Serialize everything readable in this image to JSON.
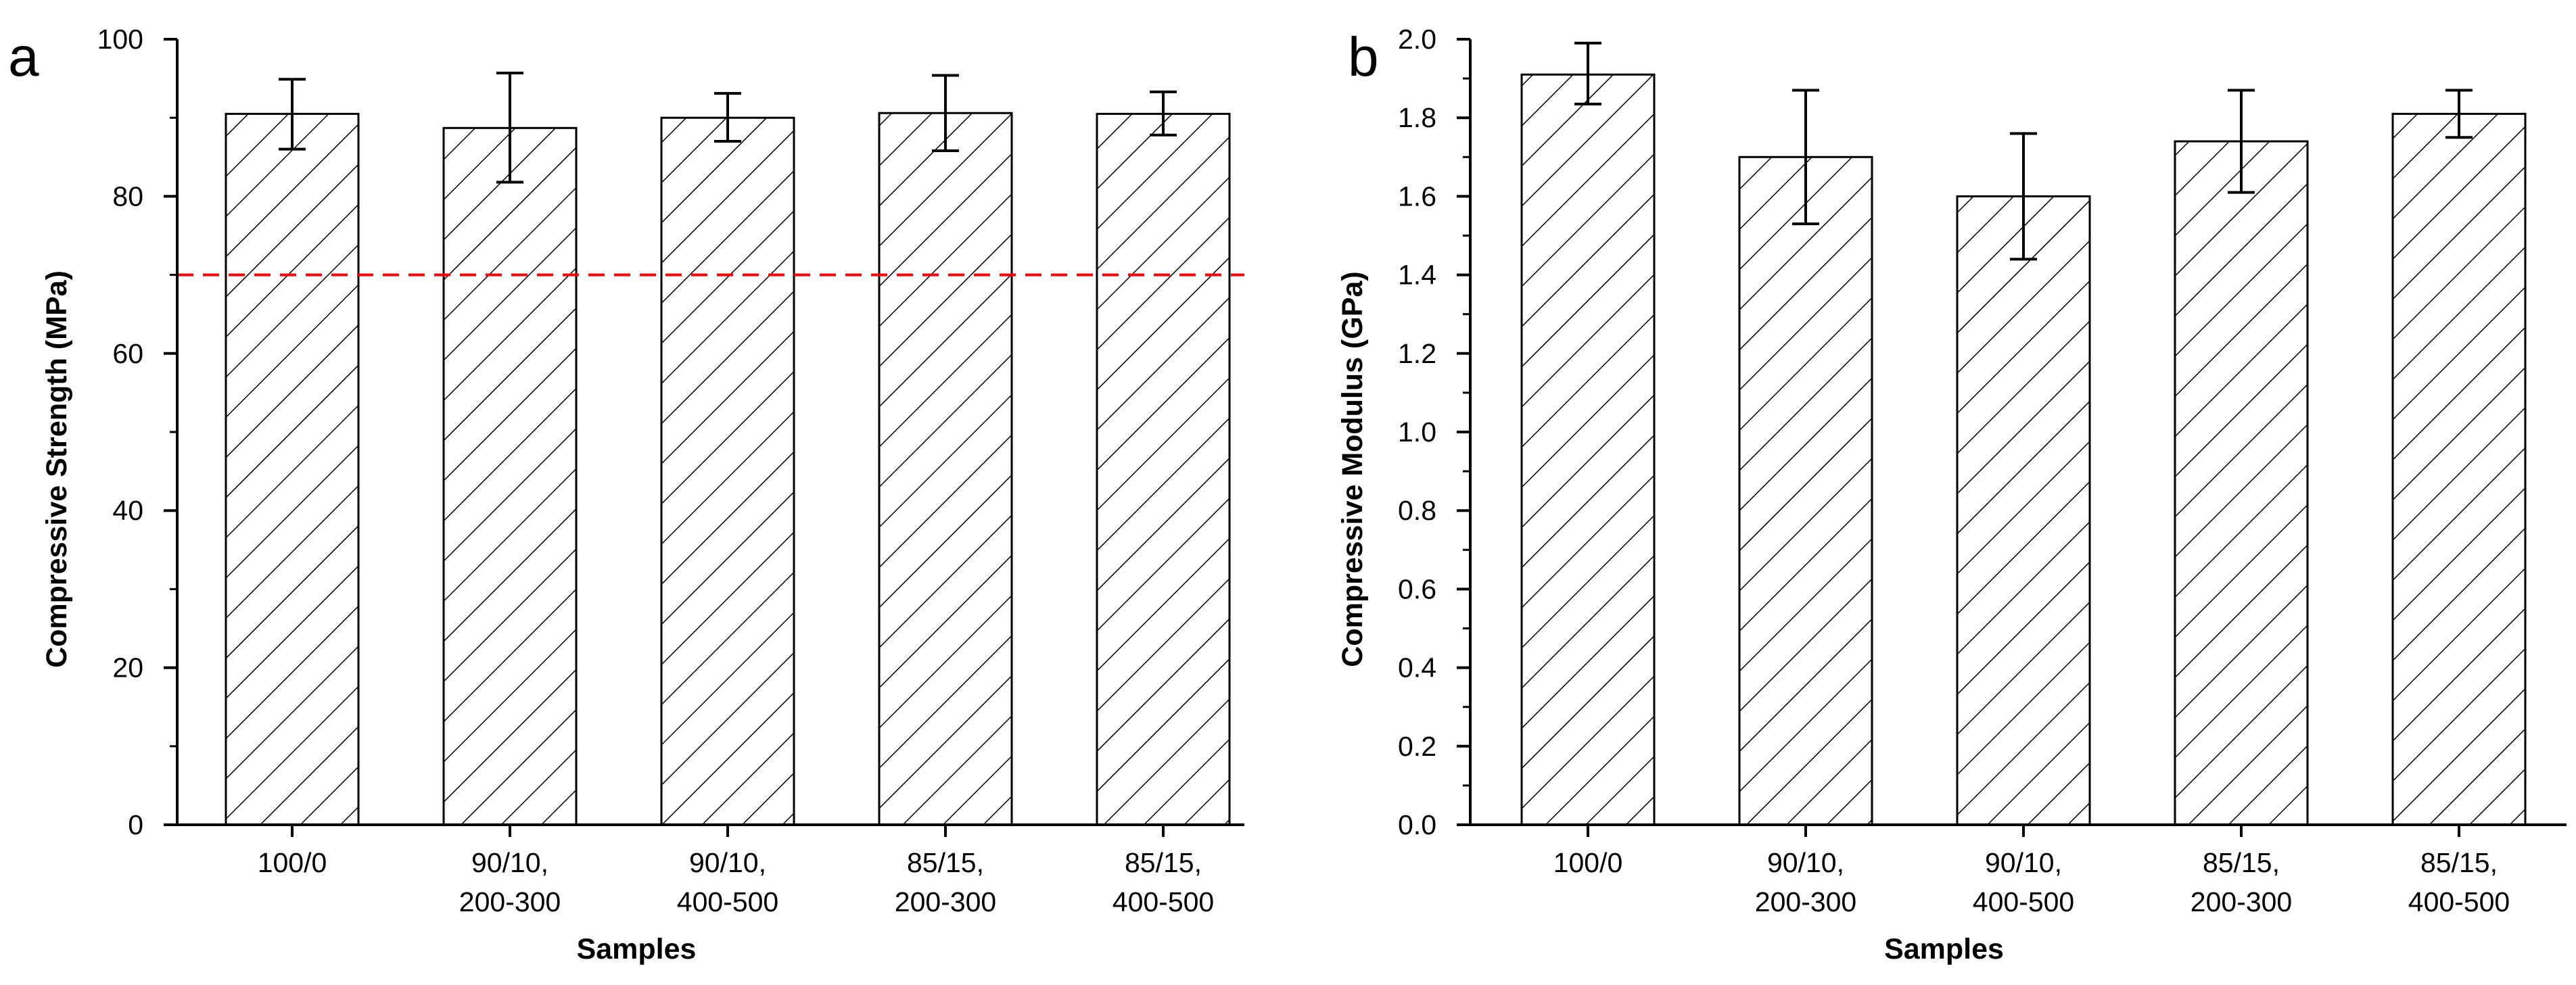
{
  "colors": {
    "bar_fill": "#ffffff",
    "bar_stroke": "#000000",
    "hatch": "#000000",
    "reference_line": "#ff0000"
  },
  "chart_data": [
    {
      "panel": "a",
      "type": "bar",
      "categories": [
        [
          "100/0"
        ],
        [
          "90/10,",
          "200-300"
        ],
        [
          "90/10,",
          "400-500"
        ],
        [
          "85/15,",
          "200-300"
        ],
        [
          "85/15,",
          "400-500"
        ]
      ],
      "values": [
        90.5,
        88.7,
        90.0,
        90.6,
        90.5
      ],
      "error_low": [
        86.0,
        81.8,
        87.0,
        85.8,
        87.8
      ],
      "error_high": [
        94.9,
        95.7,
        93.1,
        95.4,
        93.3
      ],
      "xlabel": "Samples",
      "ylabel": "Compressive Strength (MPa)",
      "ylim": [
        0,
        100
      ],
      "yticks": [
        0,
        20,
        40,
        60,
        80,
        100
      ],
      "ytick_labels": [
        "0",
        "20",
        "40",
        "60",
        "80",
        "100"
      ],
      "reference_line": {
        "y": 70,
        "style": "dashed"
      },
      "bar_pattern": "diagonal-hatch",
      "grid": false
    },
    {
      "panel": "b",
      "type": "bar",
      "categories": [
        [
          "100/0"
        ],
        [
          "90/10,",
          "200-300"
        ],
        [
          "90/10,",
          "400-500"
        ],
        [
          "85/15,",
          "200-300"
        ],
        [
          "85/15,",
          "400-500"
        ]
      ],
      "values": [
        1.91,
        1.7,
        1.6,
        1.74,
        1.81
      ],
      "error_low": [
        1.835,
        1.53,
        1.44,
        1.61,
        1.75
      ],
      "error_high": [
        1.99,
        1.87,
        1.76,
        1.87,
        1.87
      ],
      "xlabel": "Samples",
      "ylabel": "Compressive Modulus (GPa)",
      "ylim": [
        0,
        2.0
      ],
      "yticks": [
        0,
        0.2,
        0.4,
        0.6,
        0.8,
        1.0,
        1.2,
        1.4,
        1.6,
        1.8,
        2.0
      ],
      "ytick_labels": [
        "0.0",
        "0.2",
        "0.4",
        "0.6",
        "0.8",
        "1.0",
        "1.2",
        "1.4",
        "1.6",
        "1.8",
        "2.0"
      ],
      "bar_pattern": "diagonal-hatch",
      "grid": false
    }
  ]
}
